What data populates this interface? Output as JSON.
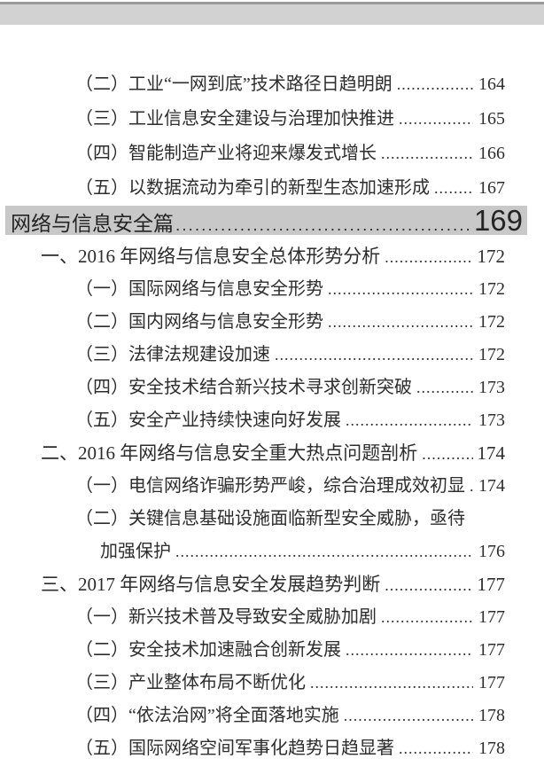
{
  "window": {
    "top_edge_line_color": "#9a9a9a",
    "top_band_color": "#d2d2d2"
  },
  "document": {
    "kind": "table-of-contents-page",
    "entries_before_section": [
      {
        "level": 2,
        "text": "（二）工业“一网到底”技术路径日趋明朗",
        "page": "164"
      },
      {
        "level": 2,
        "text": "（三）工业信息安全建设与治理加快推进",
        "page": "165"
      },
      {
        "level": 2,
        "text": "（四）智能制造产业将迎来爆发式增长",
        "page": "166"
      },
      {
        "level": 2,
        "text": "（五）以数据流动为牵引的新型生态加速形成",
        "page": "167"
      }
    ],
    "section_header": {
      "title": "网络与信息安全篇",
      "page": "169",
      "highlight_color": "#c8c8c8"
    },
    "entries_after_section": [
      {
        "level": 1,
        "text": "一、2016 年网络与信息安全总体形势分析",
        "page": "172"
      },
      {
        "level": 2,
        "text": "（一）国际网络与信息安全形势",
        "page": "172"
      },
      {
        "level": 2,
        "text": "（二）国内网络与信息安全形势",
        "page": "172"
      },
      {
        "level": 2,
        "text": "（三）法律法规建设加速",
        "page": "172"
      },
      {
        "level": 2,
        "text": "（四）安全技术结合新兴技术寻求创新突破",
        "page": "173"
      },
      {
        "level": 2,
        "text": "（五）安全产业持续快速向好发展",
        "page": "173"
      },
      {
        "level": 1,
        "text": "二、2016 年网络与信息安全重大热点问题剖析",
        "page": "174"
      },
      {
        "level": 2,
        "text": "（一）电信网络诈骗形势严峻，综合治理成效初显",
        "page": "174"
      },
      {
        "level": 2,
        "text": "（二）关键信息基础设施面临新型安全威胁，亟待",
        "page": null
      },
      {
        "level": 2,
        "continuation": true,
        "text": "加强保护",
        "page": "176"
      },
      {
        "level": 1,
        "text": "三、2017 年网络与信息安全发展趋势判断",
        "page": "177"
      },
      {
        "level": 2,
        "text": "（一）新兴技术普及导致安全威胁加剧",
        "page": "177"
      },
      {
        "level": 2,
        "text": "（二）安全技术加速融合创新发展",
        "page": "177"
      },
      {
        "level": 2,
        "text": "（三）产业整体布局不断优化",
        "page": "177"
      },
      {
        "level": 2,
        "text": "（四）“依法治网”将全面落地实施",
        "page": "178"
      },
      {
        "level": 2,
        "text": "（五）国际网络空间军事化趋势日趋显著",
        "page": "178"
      }
    ]
  }
}
